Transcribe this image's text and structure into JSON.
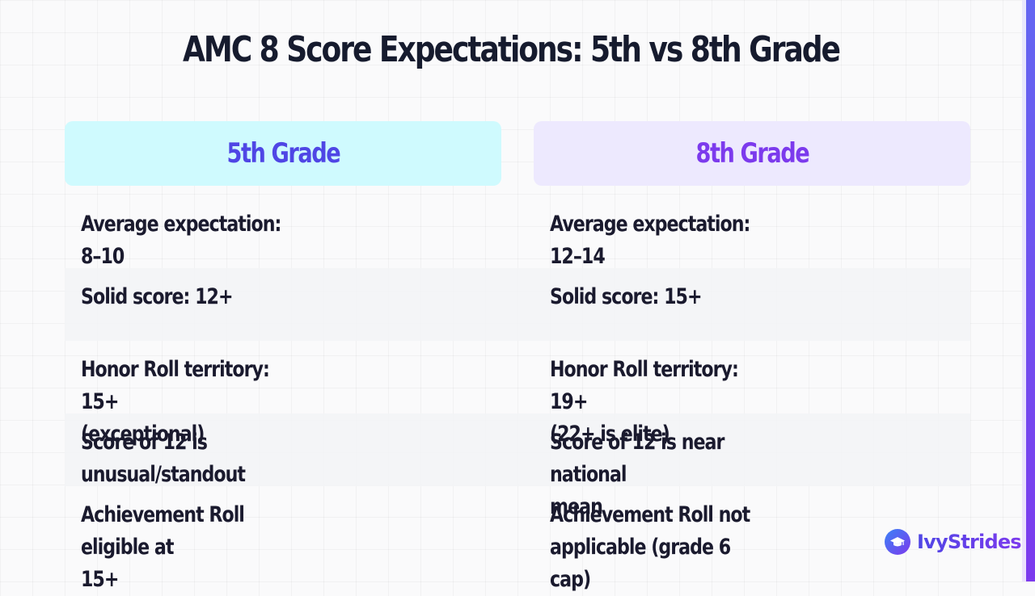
{
  "title": "AMC 8 Score Expectations: 5th vs 8th Grade",
  "columns": [
    {
      "header": "5th Grade",
      "rows": [
        "Average expectation: 8–10",
        "Solid score: 12+",
        "Honor Roll territory: 15+\n(exceptional)",
        "Score of 12 is\nunusual/standout",
        "Achievement Roll eligible at\n15+"
      ]
    },
    {
      "header": "8th Grade",
      "rows": [
        "Average expectation: 12–14",
        "Solid score: 15+",
        "Honor Roll territory: 19+\n(22+ is elite)",
        "Score of 12 is near national\nmean",
        "Achievement Roll not\napplicable (grade 6 cap)"
      ]
    }
  ],
  "brand": {
    "name": "IvyStrides",
    "icon": "graduation-cap-icon",
    "colors": {
      "primary": "#4f46e5",
      "secondary": "#7c3aed",
      "header_5th_bg": "#cffafe",
      "header_8th_bg": "#ede9fe"
    }
  }
}
